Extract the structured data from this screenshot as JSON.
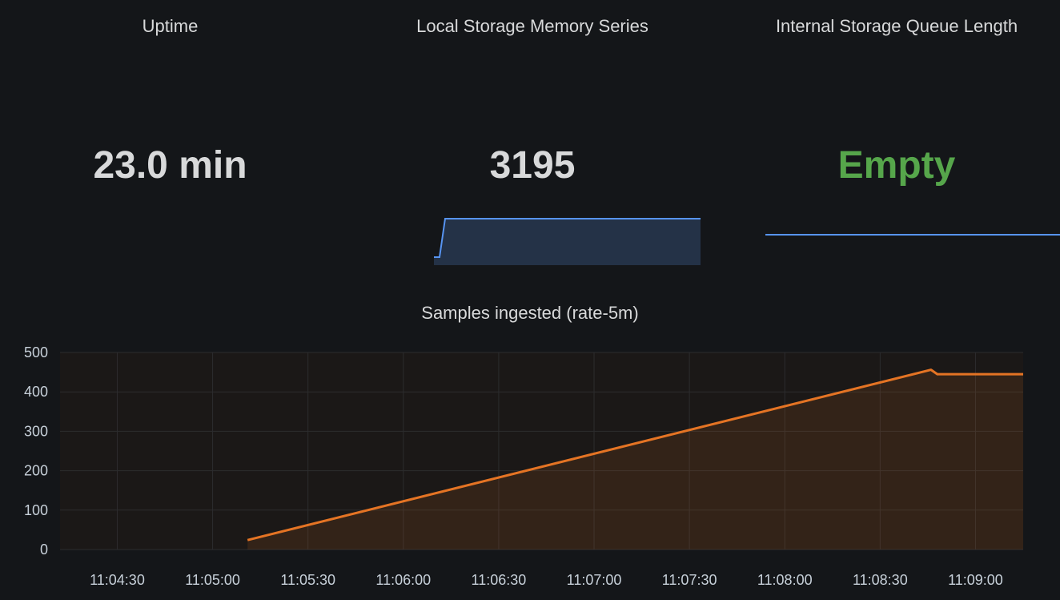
{
  "stats": [
    {
      "title": "Uptime",
      "value": "23.0 min"
    },
    {
      "title": "Local Storage Memory Series",
      "value": "3195"
    },
    {
      "title": "Internal Storage Queue Length",
      "value": "Empty"
    }
  ],
  "colors": {
    "background": "#141619",
    "text": "#d8d9da",
    "ok_green": "#56a64b",
    "sparkline": "#5794f2",
    "series": "#e57424"
  },
  "chart_data": {
    "type": "area",
    "title": "Samples ingested (rate-5m)",
    "xlabel": "",
    "ylabel": "",
    "grid": true,
    "legend": "none",
    "ylim": [
      0,
      500
    ],
    "xlim": [
      "11:04:12",
      "11:09:15"
    ],
    "y_ticks": [
      "0",
      "100",
      "200",
      "300",
      "400",
      "500"
    ],
    "x_ticks": [
      "11:04:30",
      "11:05:00",
      "11:05:30",
      "11:06:00",
      "11:06:30",
      "11:07:00",
      "11:07:30",
      "11:08:00",
      "11:08:30",
      "11:09:00"
    ],
    "series": [
      {
        "x": [
          "11:05:11",
          "11:08:46",
          "11:08:48",
          "11:09:15"
        ],
        "values": [
          24,
          456,
          445,
          445
        ]
      }
    ]
  }
}
